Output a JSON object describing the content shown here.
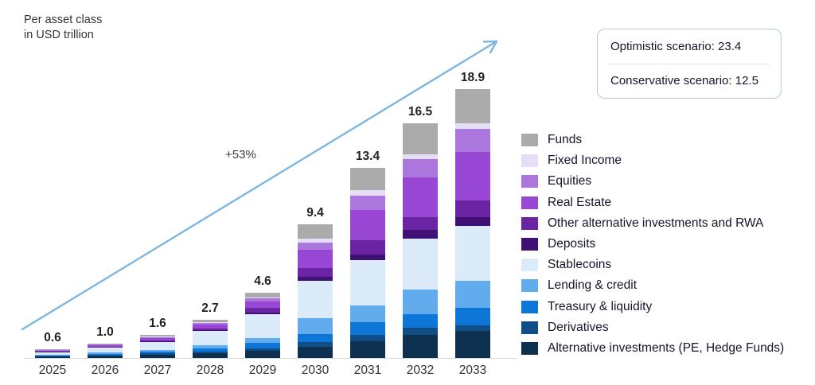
{
  "title": {
    "line1": "Per asset class",
    "line2": "in USD trillion"
  },
  "scenario_box": {
    "optimistic": "Optimistic scenario: 23.4",
    "conservative": "Conservative scenario: 12.5"
  },
  "annotation": {
    "growth_label": "+53%"
  },
  "colors": {
    "arrow": "#7cb6e2",
    "baseline": "#d8d8d8",
    "scenario_border": "#b7c9d9"
  },
  "chart_data": {
    "type": "bar",
    "stacked": true,
    "title": "Per asset class in USD trillion",
    "categories": [
      "2025",
      "2026",
      "2027",
      "2028",
      "2029",
      "2030",
      "2031",
      "2032",
      "2033"
    ],
    "totals": [
      0.6,
      1.0,
      1.6,
      2.7,
      4.6,
      9.4,
      13.4,
      16.5,
      18.9
    ],
    "total_labels": [
      "0.6",
      "1.0",
      "1.6",
      "2.7",
      "4.6",
      "9.4",
      "13.4",
      "16.5",
      "18.9"
    ],
    "ylim": [
      0,
      20
    ],
    "grid": false,
    "legend_position": "right",
    "legend_order_top_to_bottom": [
      "Funds",
      "Fixed Income",
      "Equities",
      "Real Estate",
      "Other alternative investments and RWA",
      "Deposits",
      "Stablecoins",
      "Lending & credit",
      "Treasury & liquidity",
      "Derivatives",
      "Alternative investments (PE, Hedge Funds)"
    ],
    "annotations": [
      "+53%",
      "Optimistic scenario: 23.4",
      "Conservative scenario: 12.5"
    ],
    "series_bottom_to_top": [
      {
        "name": "Alternative investments (PE, Hedge Funds)",
        "color": "#0d3050",
        "values": [
          0.1,
          0.15,
          0.25,
          0.35,
          0.5,
          0.8,
          1.2,
          1.6,
          1.9
        ]
      },
      {
        "name": "Derivatives",
        "color": "#114e88",
        "values": [
          0.02,
          0.04,
          0.06,
          0.1,
          0.2,
          0.3,
          0.4,
          0.5,
          0.4
        ]
      },
      {
        "name": "Treasury & liquidity",
        "color": "#0e76d7",
        "values": [
          0.05,
          0.08,
          0.12,
          0.2,
          0.35,
          0.6,
          0.9,
          1.0,
          1.2
        ]
      },
      {
        "name": "Lending & credit",
        "color": "#62abec",
        "values": [
          0.05,
          0.1,
          0.15,
          0.25,
          0.35,
          1.1,
          1.2,
          1.7,
          1.9
        ]
      },
      {
        "name": "Stablecoins",
        "color": "#dcebfa",
        "values": [
          0.2,
          0.35,
          0.55,
          1.0,
          1.7,
          2.6,
          3.2,
          3.6,
          3.9
        ]
      },
      {
        "name": "Deposits",
        "color": "#3f1174",
        "values": [
          0.02,
          0.03,
          0.04,
          0.05,
          0.1,
          0.3,
          0.4,
          0.6,
          0.6
        ]
      },
      {
        "name": "Other alternative investments and RWA",
        "color": "#6b24a4",
        "values": [
          0.03,
          0.05,
          0.08,
          0.15,
          0.3,
          0.6,
          1.0,
          0.9,
          1.2
        ]
      },
      {
        "name": "Real Estate",
        "color": "#9747d3",
        "values": [
          0.06,
          0.1,
          0.15,
          0.25,
          0.45,
          1.3,
          2.1,
          2.8,
          3.4
        ]
      },
      {
        "name": "Equities",
        "color": "#ab77dc",
        "values": [
          0.03,
          0.04,
          0.08,
          0.12,
          0.25,
          0.5,
          1.0,
          1.3,
          1.6
        ]
      },
      {
        "name": "Fixed Income",
        "color": "#e6def6",
        "values": [
          0.01,
          0.01,
          0.02,
          0.03,
          0.05,
          0.3,
          0.4,
          0.3,
          0.4
        ]
      },
      {
        "name": "Funds",
        "color": "#ababab",
        "values": [
          0.03,
          0.05,
          0.1,
          0.2,
          0.35,
          1.0,
          1.6,
          2.2,
          2.4
        ]
      }
    ]
  }
}
